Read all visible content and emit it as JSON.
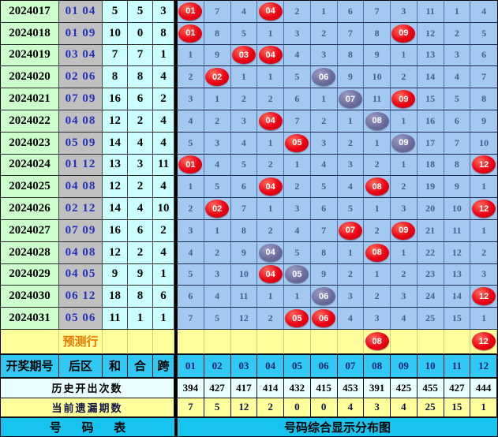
{
  "chart_data": {
    "type": "table",
    "title": "号码综合显示分布图",
    "left_columns": [
      "开奖期号",
      "后区",
      "和",
      "合",
      "跨"
    ],
    "number_columns": [
      "01",
      "02",
      "03",
      "04",
      "05",
      "06",
      "07",
      "08",
      "09",
      "10",
      "11",
      "12"
    ],
    "mark_legend": {
      "r": "red-drawn-number-circle",
      "g": "gray-diagonal-number-circle"
    },
    "rows": [
      {
        "period": "2024017",
        "back": "01 04",
        "sum": "5",
        "he": "5",
        "span": "3",
        "cells": [
          "r:01",
          "7",
          "4",
          "r:04",
          "2",
          "1",
          "6",
          "7",
          "3",
          "11",
          "1",
          "4"
        ]
      },
      {
        "period": "2024018",
        "back": "01 09",
        "sum": "10",
        "he": "0",
        "span": "8",
        "cells": [
          "r:01",
          "8",
          "5",
          "1",
          "3",
          "2",
          "7",
          "8",
          "r:09",
          "12",
          "2",
          "5"
        ]
      },
      {
        "period": "2024019",
        "back": "03 04",
        "sum": "7",
        "he": "7",
        "span": "1",
        "cells": [
          "1",
          "9",
          "r:03",
          "r:04",
          "4",
          "3",
          "8",
          "9",
          "1",
          "13",
          "3",
          "6"
        ]
      },
      {
        "period": "2024020",
        "back": "02 06",
        "sum": "8",
        "he": "8",
        "span": "4",
        "cells": [
          "2",
          "r:02",
          "1",
          "1",
          "5",
          "g:06",
          "9",
          "10",
          "2",
          "14",
          "4",
          "7"
        ]
      },
      {
        "period": "2024021",
        "back": "07 09",
        "sum": "16",
        "he": "6",
        "span": "2",
        "cells": [
          "3",
          "1",
          "2",
          "2",
          "6",
          "1",
          "g:07",
          "11",
          "r:09",
          "15",
          "5",
          "8"
        ]
      },
      {
        "period": "2024022",
        "back": "04 08",
        "sum": "12",
        "he": "2",
        "span": "4",
        "cells": [
          "4",
          "2",
          "3",
          "r:04",
          "7",
          "2",
          "1",
          "g:08",
          "1",
          "16",
          "6",
          "9"
        ]
      },
      {
        "period": "2024023",
        "back": "05 09",
        "sum": "14",
        "he": "4",
        "span": "4",
        "cells": [
          "5",
          "3",
          "4",
          "1",
          "r:05",
          "3",
          "2",
          "1",
          "g:09",
          "17",
          "7",
          "10"
        ]
      },
      {
        "period": "2024024",
        "back": "01 12",
        "sum": "13",
        "he": "3",
        "span": "11",
        "cells": [
          "r:01",
          "4",
          "5",
          "2",
          "1",
          "4",
          "3",
          "2",
          "1",
          "18",
          "8",
          "r:12"
        ]
      },
      {
        "period": "2024025",
        "back": "04 08",
        "sum": "12",
        "he": "2",
        "span": "4",
        "cells": [
          "1",
          "5",
          "6",
          "r:04",
          "2",
          "5",
          "4",
          "r:08",
          "2",
          "19",
          "9",
          "1"
        ]
      },
      {
        "period": "2024026",
        "back": "02 12",
        "sum": "14",
        "he": "4",
        "span": "10",
        "cells": [
          "2",
          "r:02",
          "7",
          "1",
          "3",
          "6",
          "5",
          "1",
          "3",
          "20",
          "10",
          "r:12"
        ]
      },
      {
        "period": "2024027",
        "back": "07 09",
        "sum": "16",
        "he": "6",
        "span": "2",
        "cells": [
          "3",
          "1",
          "8",
          "2",
          "4",
          "7",
          "r:07",
          "2",
          "r:09",
          "21",
          "11",
          "1"
        ]
      },
      {
        "period": "2024028",
        "back": "04 08",
        "sum": "12",
        "he": "2",
        "span": "4",
        "cells": [
          "4",
          "2",
          "9",
          "g:04",
          "5",
          "8",
          "1",
          "r:08",
          "1",
          "22",
          "12",
          "2"
        ]
      },
      {
        "period": "2024029",
        "back": "04 05",
        "sum": "9",
        "he": "9",
        "span": "1",
        "cells": [
          "5",
          "3",
          "10",
          "r:04",
          "g:05",
          "9",
          "2",
          "1",
          "2",
          "23",
          "13",
          "3"
        ]
      },
      {
        "period": "2024030",
        "back": "06 12",
        "sum": "18",
        "he": "8",
        "span": "6",
        "cells": [
          "6",
          "4",
          "11",
          "1",
          "1",
          "g:06",
          "3",
          "2",
          "3",
          "24",
          "14",
          "r:12"
        ]
      },
      {
        "period": "2024031",
        "back": "05 06",
        "sum": "11",
        "he": "1",
        "span": "1",
        "cells": [
          "7",
          "5",
          "12",
          "2",
          "r:05",
          "r:06",
          "4",
          "3",
          "4",
          "25",
          "15",
          "1"
        ]
      }
    ],
    "prediction_row": {
      "label": "预测行",
      "cells": [
        "",
        "",
        "",
        "",
        "",
        "",
        "",
        "r:08",
        "",
        "",
        "",
        "r:12"
      ]
    },
    "history_row": {
      "label": "历史开出次数",
      "values": [
        "394",
        "427",
        "417",
        "414",
        "432",
        "415",
        "453",
        "391",
        "425",
        "455",
        "427",
        "444"
      ]
    },
    "omission_row": {
      "label": "当前遗漏期数",
      "values": [
        "7",
        "5",
        "12",
        "2",
        "0",
        "0",
        "4",
        "3",
        "4",
        "25",
        "15",
        "1"
      ]
    },
    "footer": {
      "left": "号 码 表",
      "right": "号码综合显示分布图"
    }
  },
  "colors": {
    "red_circle": "#ea0012",
    "gray_circle": "#6a6a9a",
    "grid_bg": "#a4c9f1",
    "period_bg": "#ccffcc",
    "back_bg": "#c0c0c0",
    "sum_bg": "#ccffff",
    "yellow_bg": "#ffff9b",
    "header_bg": "#2fc9f4",
    "history_bg": "#e9feff",
    "back_text": "#2230bb",
    "grid_text": "#40618f",
    "prediction_text": "#f07800"
  }
}
